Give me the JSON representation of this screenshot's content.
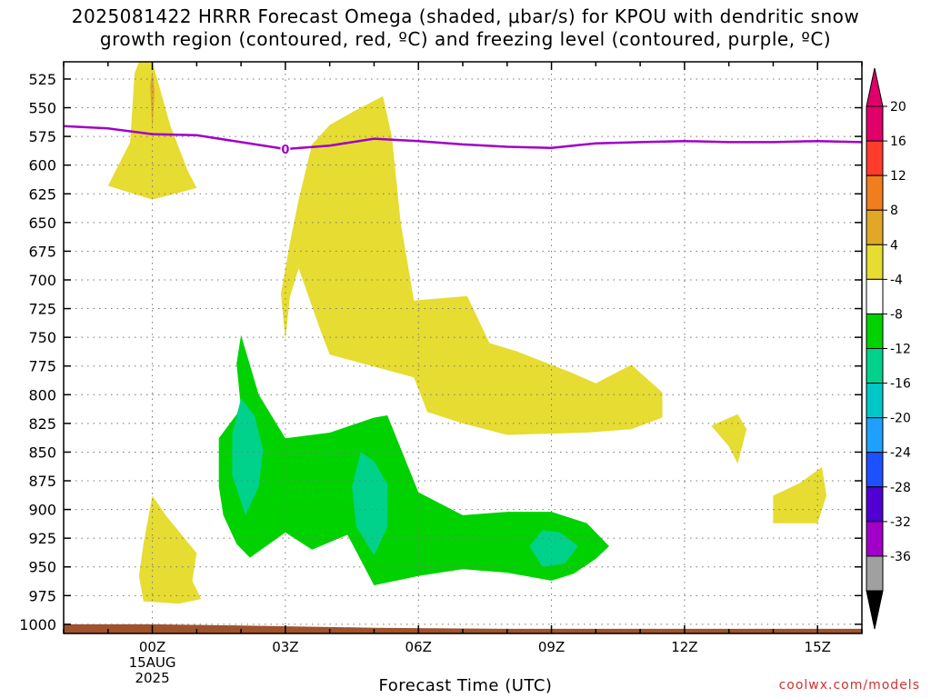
{
  "chart_data": {
    "type": "contour",
    "title_line1": "2025081422 HRRR Forecast Omega (shaded, μbar/s) for KPOU with dendritic snow",
    "title_line2": "growth region (contoured, red, ºC) and freezing level (contoured, purple, ºC)",
    "xlabel": "Forecast Time (UTC)",
    "x_ticks": [
      {
        "hour": 0,
        "label": "00Z",
        "sub1": "15AUG",
        "sub2": "2025"
      },
      {
        "hour": 3,
        "label": "03Z",
        "sub1": "",
        "sub2": ""
      },
      {
        "hour": 6,
        "label": "06Z",
        "sub1": "",
        "sub2": ""
      },
      {
        "hour": 9,
        "label": "09Z",
        "sub1": "",
        "sub2": ""
      },
      {
        "hour": 12,
        "label": "12Z",
        "sub1": "",
        "sub2": ""
      },
      {
        "hour": 15,
        "label": "15Z",
        "sub1": "",
        "sub2": ""
      }
    ],
    "xlim_hours": [
      -2.0,
      16.0
    ],
    "y_ticks": [
      525,
      550,
      575,
      600,
      625,
      650,
      675,
      700,
      725,
      750,
      775,
      800,
      825,
      850,
      875,
      900,
      925,
      950,
      975,
      1000
    ],
    "ylim_hpa": [
      510,
      1008
    ],
    "grid": true,
    "colorbar": {
      "position": "right",
      "bins": [
        {
          "label": "20",
          "color": "#e0006a"
        },
        {
          "label": "16",
          "color": "#ff3b2b"
        },
        {
          "label": "12",
          "color": "#f07d1e"
        },
        {
          "label": "8",
          "color": "#e0a825"
        },
        {
          "label": "4",
          "color": "#e6dc32"
        },
        {
          "label": "-4",
          "color": "#ffffff"
        },
        {
          "label": "-8",
          "color": "#00d200"
        },
        {
          "label": "-12",
          "color": "#00d28c"
        },
        {
          "label": "-16",
          "color": "#00c8c8"
        },
        {
          "label": "-20",
          "color": "#1ea0ff"
        },
        {
          "label": "-24",
          "color": "#1e50ff"
        },
        {
          "label": "-28",
          "color": "#5000d2"
        },
        {
          "label": "-32",
          "color": "#a000c8"
        },
        {
          "label": "-36",
          "color": "#a0a0a0"
        }
      ],
      "top_arrow_color": "#e0006a",
      "bottom_arrow_color": "#000000"
    },
    "freezing_level": {
      "color": "#a000c8",
      "points": [
        [
          -2.0,
          566
        ],
        [
          -1.0,
          568
        ],
        [
          0.0,
          573
        ],
        [
          1.0,
          574
        ],
        [
          2.0,
          580
        ],
        [
          3.0,
          586
        ],
        [
          4.0,
          583
        ],
        [
          5.0,
          577
        ],
        [
          6.0,
          579
        ],
        [
          7.0,
          582
        ],
        [
          8.0,
          584
        ],
        [
          9.0,
          585
        ],
        [
          10.0,
          581
        ],
        [
          11.0,
          580
        ],
        [
          12.0,
          579
        ],
        [
          13.0,
          580
        ],
        [
          14.0,
          580
        ],
        [
          15.0,
          579
        ],
        [
          16.0,
          580
        ]
      ],
      "label": "0",
      "label_at": [
        3.0,
        586
      ]
    },
    "omega_regions": [
      {
        "color": "#e6dc32",
        "points": [
          [
            -1.0,
            618
          ],
          [
            -0.5,
            580
          ],
          [
            -0.4,
            520
          ],
          [
            -0.3,
            510
          ],
          [
            0.0,
            510
          ],
          [
            0.4,
            565
          ],
          [
            0.8,
            605
          ],
          [
            1.0,
            620
          ],
          [
            0.0,
            630
          ]
        ]
      },
      {
        "color": "#e0a825",
        "points": [
          [
            -0.05,
            530
          ],
          [
            0.0,
            518
          ],
          [
            0.05,
            535
          ],
          [
            0.0,
            570
          ]
        ]
      },
      {
        "color": "#e6dc32",
        "points": [
          [
            3.0,
            753
          ],
          [
            2.9,
            712
          ],
          [
            3.1,
            668
          ],
          [
            3.3,
            630
          ],
          [
            3.6,
            582
          ],
          [
            4.0,
            565
          ],
          [
            4.6,
            552
          ],
          [
            5.2,
            540
          ],
          [
            5.4,
            575
          ],
          [
            5.6,
            650
          ],
          [
            5.9,
            718
          ],
          [
            7.1,
            714
          ],
          [
            7.6,
            755
          ],
          [
            8.2,
            762
          ],
          [
            9.4,
            780
          ],
          [
            10.0,
            790
          ],
          [
            10.8,
            774
          ],
          [
            11.5,
            798
          ],
          [
            11.5,
            820
          ],
          [
            10.8,
            830
          ],
          [
            9.8,
            833
          ],
          [
            8.0,
            835
          ],
          [
            7.0,
            825
          ],
          [
            6.2,
            815
          ],
          [
            5.9,
            785
          ],
          [
            4.0,
            765
          ],
          [
            3.8,
            745
          ],
          [
            3.3,
            690
          ],
          [
            3.1,
            715
          ]
        ]
      },
      {
        "color": "#e6dc32",
        "points": [
          [
            12.6,
            827
          ],
          [
            13.2,
            817
          ],
          [
            13.4,
            830
          ],
          [
            13.2,
            860
          ],
          [
            13.0,
            845
          ]
        ]
      },
      {
        "color": "#e6dc32",
        "points": [
          [
            14.0,
            888
          ],
          [
            14.6,
            877
          ],
          [
            15.1,
            863
          ],
          [
            15.2,
            888
          ],
          [
            15.0,
            912
          ],
          [
            14.0,
            912
          ]
        ]
      },
      {
        "color": "#e6dc32",
        "points": [
          [
            -0.3,
            958
          ],
          [
            -0.2,
            930
          ],
          [
            0.0,
            888
          ],
          [
            0.3,
            905
          ],
          [
            1.0,
            938
          ],
          [
            0.9,
            962
          ],
          [
            1.1,
            978
          ],
          [
            0.6,
            982
          ],
          [
            -0.2,
            980
          ]
        ]
      },
      {
        "color": "#00d200",
        "points": [
          [
            1.5,
            880
          ],
          [
            1.5,
            838
          ],
          [
            2.0,
            812
          ],
          [
            1.9,
            773
          ],
          [
            2.0,
            748
          ],
          [
            2.4,
            800
          ],
          [
            3.0,
            838
          ],
          [
            4.0,
            833
          ],
          [
            5.0,
            820
          ],
          [
            5.3,
            818
          ],
          [
            6.0,
            885
          ],
          [
            7.0,
            905
          ],
          [
            8.0,
            902
          ],
          [
            9.0,
            902
          ],
          [
            9.8,
            912
          ],
          [
            10.3,
            932
          ],
          [
            10.0,
            943
          ],
          [
            9.5,
            956
          ],
          [
            9.0,
            962
          ],
          [
            8.0,
            955
          ],
          [
            7.0,
            952
          ],
          [
            6.0,
            958
          ],
          [
            5.0,
            966
          ],
          [
            4.4,
            922
          ],
          [
            3.6,
            935
          ],
          [
            3.0,
            920
          ],
          [
            2.2,
            942
          ],
          [
            1.9,
            930
          ],
          [
            1.6,
            905
          ]
        ]
      },
      {
        "color": "#00d28c",
        "points": [
          [
            1.8,
            834
          ],
          [
            2.0,
            803
          ],
          [
            2.3,
            818
          ],
          [
            2.5,
            848
          ],
          [
            2.4,
            880
          ],
          [
            2.1,
            905
          ],
          [
            1.8,
            870
          ]
        ]
      },
      {
        "color": "#00d28c",
        "points": [
          [
            4.5,
            880
          ],
          [
            4.7,
            850
          ],
          [
            5.0,
            858
          ],
          [
            5.3,
            878
          ],
          [
            5.3,
            915
          ],
          [
            5.0,
            940
          ],
          [
            4.6,
            915
          ]
        ]
      },
      {
        "color": "#00d28c",
        "points": [
          [
            8.5,
            932
          ],
          [
            8.8,
            918
          ],
          [
            9.2,
            920
          ],
          [
            9.6,
            932
          ],
          [
            9.3,
            947
          ],
          [
            8.8,
            950
          ]
        ]
      }
    ],
    "terrain": {
      "color": "#a0522d",
      "top_points": [
        [
          -2.0,
          1000
        ],
        [
          0.0,
          1000
        ],
        [
          2.0,
          1001
        ],
        [
          5.0,
          1003
        ],
        [
          8.0,
          1004
        ],
        [
          12.0,
          1004
        ],
        [
          16.0,
          1004
        ]
      ]
    }
  },
  "credit": "coolwx.com/models"
}
